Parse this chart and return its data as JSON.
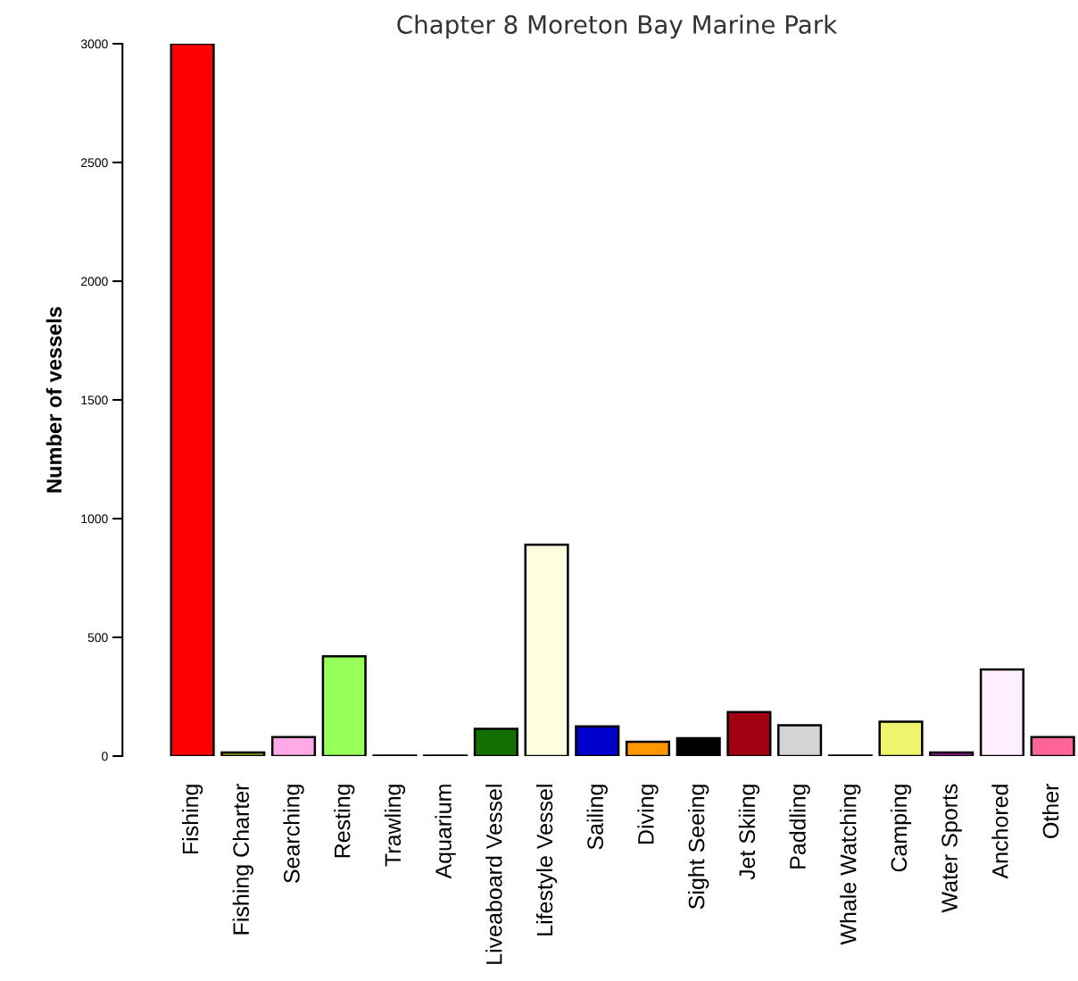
{
  "chart_data": {
    "type": "bar",
    "title": "Chapter 8 Moreton Bay Marine Park",
    "ylabel": "Number of vessels",
    "categories": [
      "Fishing",
      "Fishing Charter",
      "Searching",
      "Resting",
      "Trawling",
      "Aquarium",
      "Liveaboard Vessel",
      "Lifestyle Vessel",
      "Sailing",
      "Diving",
      "Sight Seeing",
      "Jet Skiing",
      "Paddling",
      "Whale Watching",
      "Camping",
      "Water Sports",
      "Anchored",
      "Other"
    ],
    "values": [
      3000,
      15,
      80,
      420,
      2,
      2,
      115,
      890,
      125,
      60,
      75,
      185,
      130,
      2,
      145,
      15,
      365,
      80
    ],
    "colors": [
      "#ff0000",
      "#9aa51e",
      "#ffaae6",
      "#96ff5a",
      "#555555",
      "#555555",
      "#137000",
      "#fffde0",
      "#0000cc",
      "#ff9600",
      "#000000",
      "#a00010",
      "#d4d4d4",
      "#555555",
      "#eff46e",
      "#9a1e9a",
      "#ffeeff",
      "#ff6496"
    ],
    "ylim": [
      0,
      3000
    ],
    "yticks": [
      0,
      500,
      1000,
      1500,
      2000,
      2500,
      3000
    ],
    "grid": false,
    "legend": false
  }
}
